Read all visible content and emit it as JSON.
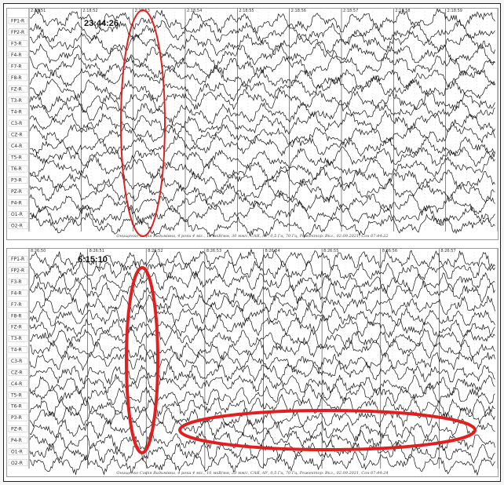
{
  "panels": [
    {
      "id": "top",
      "timestamp": "23:44:26",
      "channels": [
        "FP1-R",
        "FP2-R",
        "F3-R",
        "F4-R",
        "F7-R",
        "F8-R",
        "FZ-R",
        "T3-R",
        "T4-R",
        "C3-R",
        "CZ-R",
        "C4-R",
        "T5-R",
        "T6-R",
        "P3-R",
        "PZ-R",
        "P4-R",
        "O1-R",
        "O2-R"
      ],
      "second_ticks": [
        "2:18:51",
        "2:18:52",
        "2:18:53",
        "2:18:54",
        "2:18:55",
        "2:18:56",
        "2:18:57",
        "2:18:58",
        "2:18:59"
      ],
      "footer": "Онищенко Софія Вадимівна, 4 роки 4 міс., 10 мкВ/мм, 30 мм/с, САЯ, АУ, 0,5 Гц, 70 Гц, Режектор: Вкл., 02.09.2021, Сон 07:44:22",
      "highlight_color": "#e02020"
    },
    {
      "id": "bottom",
      "timestamp": "6:15:10",
      "channels": [
        "FP1-R",
        "FP2-R",
        "F3-R",
        "F4-R",
        "F7-R",
        "F8-R",
        "FZ-R",
        "T3-R",
        "T4-R",
        "C3-R",
        "CZ-R",
        "C4-R",
        "T5-R",
        "T6-R",
        "P3-R",
        "PZ-R",
        "P4-R",
        "O1-R",
        "O2-R"
      ],
      "second_ticks": [
        "8:26:50",
        "8:26:51",
        "8:26:52",
        "8:26:53",
        "8:26:54",
        "8:26:55",
        "8:26:56",
        "8:26:57"
      ],
      "footer": "Онищенко Софія Вадимівна, 4 роки 4 міс., 10 мкВ/мм, 30 мм/с, САЯ, АУ, 0,5 Гц, 70 Гц, Режектор: Вкл., 02.09.2021, Сон 07:44:24",
      "highlight_color": "#e02020"
    }
  ]
}
